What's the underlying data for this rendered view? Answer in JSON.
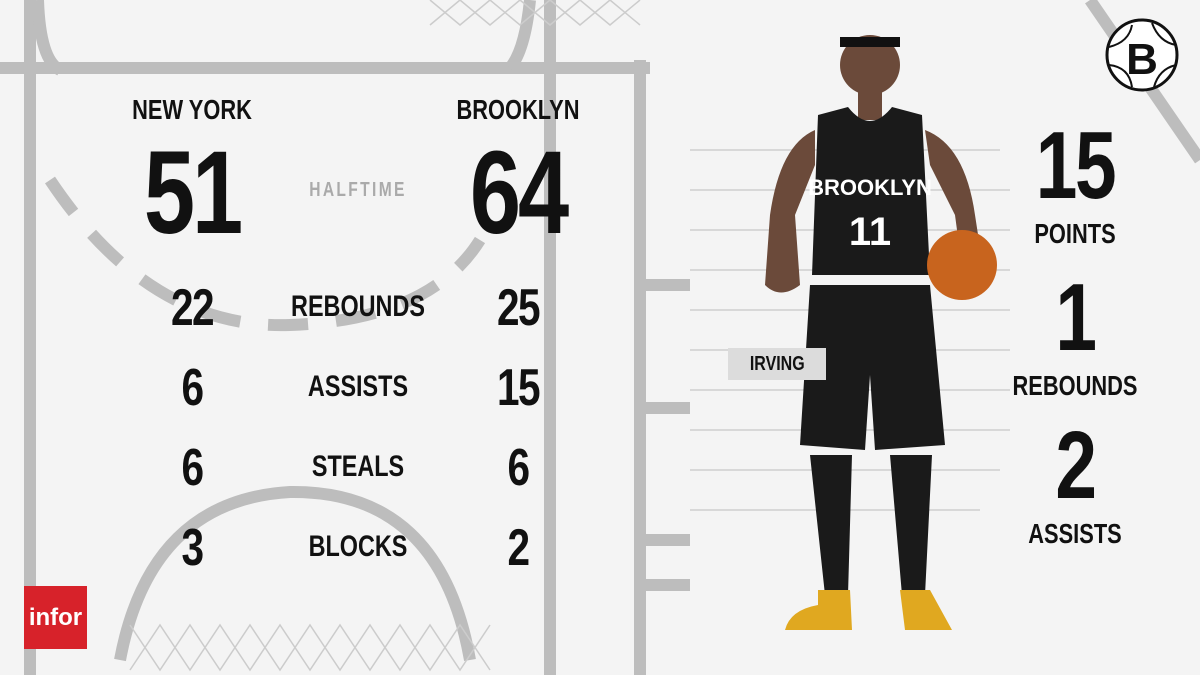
{
  "game": {
    "status": "HALFTIME"
  },
  "teams": [
    {
      "name": "NEW YORK",
      "score": "51"
    },
    {
      "name": "BROOKLYN",
      "score": "64"
    }
  ],
  "team_stats": [
    {
      "label": "REBOUNDS",
      "home": "22",
      "away": "25"
    },
    {
      "label": "ASSISTS",
      "home": "6",
      "away": "15"
    },
    {
      "label": "STEALS",
      "home": "6",
      "away": "6"
    },
    {
      "label": "BLOCKS",
      "home": "3",
      "away": "2"
    }
  ],
  "player": {
    "name": "IRVING",
    "jersey_text": "BROOKLYN",
    "jersey_number": "11",
    "stats": [
      {
        "value": "15",
        "label": "POINTS"
      },
      {
        "value": "1",
        "label": "REBOUNDS"
      },
      {
        "value": "2",
        "label": "ASSISTS"
      }
    ]
  },
  "sponsor": {
    "logo_text": "infor",
    "color": "#d7222a"
  },
  "team_logo": {
    "letter": "B"
  }
}
